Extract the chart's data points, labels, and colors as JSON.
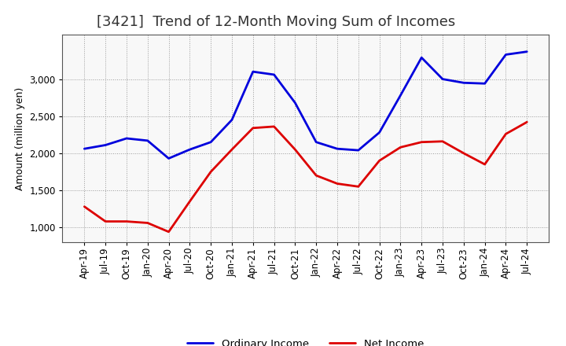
{
  "title": "[3421]  Trend of 12-Month Moving Sum of Incomes",
  "ylabel": "Amount (million yen)",
  "background_color": "#ffffff",
  "plot_background": "#f8f8f8",
  "grid_color": "#999999",
  "x_labels": [
    "Apr-19",
    "Jul-19",
    "Oct-19",
    "Jan-20",
    "Apr-20",
    "Jul-20",
    "Oct-20",
    "Jan-21",
    "Apr-21",
    "Jul-21",
    "Oct-21",
    "Jan-22",
    "Apr-22",
    "Jul-22",
    "Oct-22",
    "Jan-23",
    "Apr-23",
    "Jul-23",
    "Oct-23",
    "Jan-24",
    "Apr-24",
    "Jul-24"
  ],
  "ordinary_income": [
    2060,
    2110,
    2200,
    2170,
    1930,
    2050,
    2150,
    2450,
    3100,
    3060,
    2680,
    2150,
    2060,
    2040,
    2280,
    2780,
    3290,
    3000,
    2950,
    2940,
    3330,
    3370
  ],
  "net_income": [
    1280,
    1080,
    1080,
    1060,
    940,
    1350,
    1750,
    2050,
    2340,
    2360,
    2050,
    1700,
    1590,
    1550,
    1900,
    2080,
    2150,
    2160,
    2000,
    1850,
    2260,
    2420
  ],
  "ordinary_income_color": "#0000dd",
  "net_income_color": "#dd0000",
  "ylim_min": 800,
  "ylim_max": 3600,
  "yticks": [
    1000,
    1500,
    2000,
    2500,
    3000
  ],
  "line_width": 2.0,
  "legend_ordinary": "Ordinary Income",
  "legend_net": "Net Income",
  "title_color": "#333333",
  "title_fontsize": 13,
  "axis_fontsize": 8.5,
  "ylabel_fontsize": 9
}
